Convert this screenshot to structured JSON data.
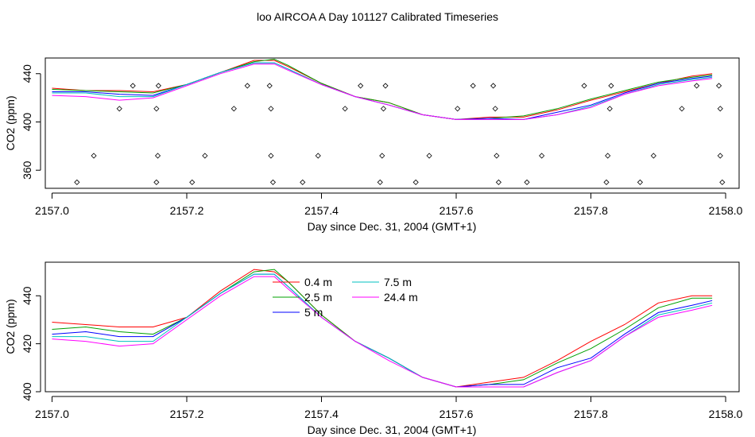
{
  "figure_title": "loo AIRCOA A  Day 101127  Calibrated Timeseries",
  "chart_data": [
    {
      "type": "line",
      "xlabel": "Day since Dec. 31, 2004 (GMT+1)",
      "ylabel": "CO2 (ppm)",
      "xlim": [
        2156.99,
        2158.02
      ],
      "ylim": [
        345,
        453
      ],
      "xticks": [
        2157.0,
        2157.2,
        2157.4,
        2157.6,
        2157.8,
        2158.0
      ],
      "xtick_labels": [
        "2157.0",
        "2157.2",
        "2157.4",
        "2157.6",
        "2157.8",
        "2158.0"
      ],
      "yticks": [
        360,
        400,
        440
      ],
      "ytick_labels": [
        "360",
        "400",
        "440"
      ],
      "grid": false,
      "x": [
        2157.0,
        2157.05,
        2157.1,
        2157.15,
        2157.2,
        2157.25,
        2157.3,
        2157.33,
        2157.35,
        2157.4,
        2157.45,
        2157.5,
        2157.55,
        2157.6,
        2157.65,
        2157.7,
        2157.75,
        2157.8,
        2157.85,
        2157.9,
        2157.95,
        2157.98
      ],
      "series": [
        {
          "color": "#ff0000",
          "values": [
            428,
            426,
            426,
            425,
            431,
            441,
            451,
            451,
            446,
            432,
            421,
            416,
            406,
            402,
            404,
            404,
            410,
            418,
            425,
            432,
            438,
            440
          ]
        },
        {
          "color": "#00a000",
          "values": [
            427,
            426,
            425,
            424,
            431,
            441,
            450,
            452,
            447,
            432,
            421,
            416,
            406,
            402,
            403,
            405,
            411,
            419,
            426,
            433,
            437,
            439
          ]
        },
        {
          "color": "#0000ff",
          "values": [
            425,
            425,
            423,
            422,
            431,
            441,
            449,
            449,
            444,
            431,
            421,
            414,
            406,
            402,
            403,
            402,
            408,
            414,
            424,
            432,
            436,
            438
          ]
        },
        {
          "color": "#00c0c0",
          "values": [
            424,
            424,
            421,
            421,
            431,
            441,
            449,
            449,
            444,
            431,
            421,
            414,
            406,
            402,
            402,
            402,
            406,
            413,
            423,
            431,
            435,
            437
          ]
        },
        {
          "color": "#ff00ff",
          "values": [
            422,
            421,
            418,
            420,
            430,
            440,
            448,
            448,
            443,
            431,
            421,
            414,
            406,
            402,
            402,
            402,
            406,
            412,
            423,
            430,
            434,
            436
          ]
        }
      ],
      "points": [
        {
          "x": 2157.037,
          "y": 350
        },
        {
          "x": 2157.12,
          "y": 430
        },
        {
          "x": 2157.158,
          "y": 430
        },
        {
          "x": 2157.062,
          "y": 372
        },
        {
          "x": 2157.1,
          "y": 411
        },
        {
          "x": 2157.155,
          "y": 411
        },
        {
          "x": 2157.155,
          "y": 350
        },
        {
          "x": 2157.157,
          "y": 372
        },
        {
          "x": 2157.208,
          "y": 350
        },
        {
          "x": 2157.227,
          "y": 372
        },
        {
          "x": 2157.27,
          "y": 411
        },
        {
          "x": 2157.29,
          "y": 430
        },
        {
          "x": 2157.323,
          "y": 430
        },
        {
          "x": 2157.325,
          "y": 411
        },
        {
          "x": 2157.325,
          "y": 372
        },
        {
          "x": 2157.328,
          "y": 350
        },
        {
          "x": 2157.372,
          "y": 350
        },
        {
          "x": 2157.395,
          "y": 372
        },
        {
          "x": 2157.435,
          "y": 411
        },
        {
          "x": 2157.458,
          "y": 430
        },
        {
          "x": 2157.487,
          "y": 350
        },
        {
          "x": 2157.49,
          "y": 372
        },
        {
          "x": 2157.492,
          "y": 411
        },
        {
          "x": 2157.495,
          "y": 430
        },
        {
          "x": 2157.54,
          "y": 350
        },
        {
          "x": 2157.56,
          "y": 372
        },
        {
          "x": 2157.602,
          "y": 411
        },
        {
          "x": 2157.625,
          "y": 430
        },
        {
          "x": 2157.655,
          "y": 430
        },
        {
          "x": 2157.658,
          "y": 411
        },
        {
          "x": 2157.66,
          "y": 372
        },
        {
          "x": 2157.663,
          "y": 350
        },
        {
          "x": 2157.705,
          "y": 350
        },
        {
          "x": 2157.727,
          "y": 372
        },
        {
          "x": 2157.79,
          "y": 430
        },
        {
          "x": 2157.823,
          "y": 350
        },
        {
          "x": 2157.825,
          "y": 372
        },
        {
          "x": 2157.828,
          "y": 411
        },
        {
          "x": 2157.83,
          "y": 430
        },
        {
          "x": 2157.873,
          "y": 350
        },
        {
          "x": 2157.893,
          "y": 372
        },
        {
          "x": 2157.935,
          "y": 411
        },
        {
          "x": 2157.957,
          "y": 430
        },
        {
          "x": 2157.99,
          "y": 430
        },
        {
          "x": 2157.992,
          "y": 411
        },
        {
          "x": 2157.992,
          "y": 372
        },
        {
          "x": 2157.995,
          "y": 350
        }
      ]
    },
    {
      "type": "line",
      "xlabel": "Day since Dec. 31, 2004 (GMT+1)",
      "ylabel": "CO2 (ppm)",
      "xlim": [
        2156.99,
        2158.02
      ],
      "ylim": [
        400,
        454
      ],
      "xticks": [
        2157.0,
        2157.2,
        2157.4,
        2157.6,
        2157.8,
        2158.0
      ],
      "xtick_labels": [
        "2157.0",
        "2157.2",
        "2157.4",
        "2157.6",
        "2157.8",
        "2158.0"
      ],
      "yticks": [
        400,
        420,
        440
      ],
      "ytick_labels": [
        "400",
        "420",
        "440"
      ],
      "grid": false,
      "legend_position": "top-center",
      "x": [
        2157.0,
        2157.05,
        2157.1,
        2157.15,
        2157.2,
        2157.25,
        2157.3,
        2157.33,
        2157.35,
        2157.4,
        2157.45,
        2157.5,
        2157.55,
        2157.6,
        2157.65,
        2157.7,
        2157.75,
        2157.8,
        2157.85,
        2157.9,
        2157.95,
        2157.98
      ],
      "series": [
        {
          "name": "0.4 m",
          "color": "#ff0000",
          "values": [
            429,
            428,
            427,
            427,
            431,
            442,
            451,
            450,
            446,
            432,
            421,
            414,
            406,
            402,
            404,
            406,
            413,
            421,
            428,
            437,
            440,
            440
          ]
        },
        {
          "name": "2.5 m",
          "color": "#00a000",
          "values": [
            426,
            427,
            425,
            424,
            431,
            441,
            450,
            451,
            446,
            432,
            421,
            414,
            406,
            402,
            403,
            405,
            412,
            418,
            426,
            435,
            439,
            439
          ]
        },
        {
          "name": "5 m",
          "color": "#0000ff",
          "values": [
            424,
            425,
            423,
            423,
            431,
            441,
            449,
            449,
            444,
            431,
            421,
            414,
            406,
            402,
            403,
            403,
            410,
            414,
            424,
            433,
            436,
            438
          ]
        },
        {
          "name": "7.5 m",
          "color": "#00c0c0",
          "values": [
            423,
            423,
            421,
            421,
            431,
            441,
            449,
            449,
            444,
            431,
            421,
            414,
            406,
            402,
            402,
            402,
            408,
            413,
            423,
            432,
            435,
            437
          ]
        },
        {
          "name": "24.4 m",
          "color": "#ff00ff",
          "values": [
            422,
            421,
            419,
            420,
            430,
            440,
            448,
            448,
            443,
            431,
            421,
            413,
            406,
            402,
            402,
            402,
            408,
            413,
            423,
            431,
            434,
            436
          ]
        }
      ]
    }
  ]
}
